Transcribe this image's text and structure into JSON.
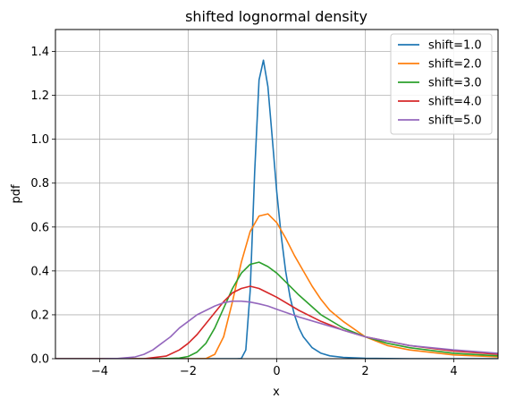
{
  "chart_data": {
    "type": "line",
    "title": "shifted lognormal density",
    "xlabel": "x",
    "ylabel": "pdf",
    "xlim": [
      -5,
      5
    ],
    "ylim": [
      0,
      1.5
    ],
    "x_ticks": [
      -4,
      -2,
      0,
      2,
      4
    ],
    "x_tick_labels": [
      "−4",
      "−2",
      "0",
      "2",
      "4"
    ],
    "y_ticks": [
      0.0,
      0.2,
      0.4,
      0.6,
      0.8,
      1.0,
      1.2,
      1.4
    ],
    "y_tick_labels": [
      "0.0",
      "0.2",
      "0.4",
      "0.6",
      "0.8",
      "1.0",
      "1.2",
      "1.4"
    ],
    "grid": true,
    "legend_position": "top-right",
    "series": [
      {
        "name": "shift=1.0",
        "color": "#1f77b4",
        "x": [
          -1.0,
          -0.9,
          -0.8,
          -0.7,
          -0.6,
          -0.5,
          -0.4,
          -0.3,
          -0.2,
          -0.1,
          0.0,
          0.1,
          0.2,
          0.3,
          0.4,
          0.5,
          0.6,
          0.8,
          1.0,
          1.2,
          1.5,
          2.0,
          2.5,
          3.0,
          4.0,
          5.0
        ],
        "y": [
          0.0,
          0.0,
          0.001,
          0.04,
          0.31,
          0.85,
          1.27,
          1.36,
          1.24,
          1.0,
          0.76,
          0.56,
          0.4,
          0.28,
          0.2,
          0.14,
          0.1,
          0.05,
          0.025,
          0.013,
          0.006,
          0.002,
          0.001,
          0.0,
          0.0,
          0.0
        ]
      },
      {
        "name": "shift=2.0",
        "color": "#ff7f0e",
        "x": [
          -2.0,
          -1.8,
          -1.6,
          -1.4,
          -1.2,
          -1.0,
          -0.8,
          -0.6,
          -0.4,
          -0.2,
          0.0,
          0.2,
          0.4,
          0.6,
          0.8,
          1.0,
          1.2,
          1.5,
          2.0,
          2.5,
          3.0,
          4.0,
          5.0
        ],
        "y": [
          0.0,
          0.0,
          0.001,
          0.02,
          0.1,
          0.26,
          0.44,
          0.58,
          0.65,
          0.66,
          0.62,
          0.55,
          0.47,
          0.4,
          0.33,
          0.27,
          0.22,
          0.17,
          0.1,
          0.06,
          0.04,
          0.017,
          0.008
        ]
      },
      {
        "name": "shift=3.0",
        "color": "#2ca02c",
        "x": [
          -3.0,
          -2.6,
          -2.2,
          -2.0,
          -1.8,
          -1.6,
          -1.4,
          -1.2,
          -1.0,
          -0.8,
          -0.6,
          -0.4,
          -0.2,
          0.0,
          0.2,
          0.5,
          1.0,
          1.5,
          2.0,
          2.5,
          3.0,
          4.0,
          5.0
        ],
        "y": [
          0.0,
          0.0,
          0.003,
          0.01,
          0.03,
          0.07,
          0.14,
          0.23,
          0.32,
          0.39,
          0.43,
          0.44,
          0.42,
          0.39,
          0.35,
          0.29,
          0.2,
          0.14,
          0.1,
          0.07,
          0.05,
          0.025,
          0.013
        ]
      },
      {
        "name": "shift=4.0",
        "color": "#d62728",
        "x": [
          -4.0,
          -3.5,
          -3.0,
          -2.5,
          -2.2,
          -2.0,
          -1.8,
          -1.6,
          -1.4,
          -1.2,
          -1.0,
          -0.8,
          -0.6,
          -0.4,
          -0.2,
          0.0,
          0.5,
          1.0,
          1.5,
          2.0,
          2.5,
          3.0,
          4.0,
          5.0
        ],
        "y": [
          0.0,
          0.0,
          0.0,
          0.012,
          0.04,
          0.07,
          0.11,
          0.16,
          0.21,
          0.26,
          0.3,
          0.32,
          0.33,
          0.32,
          0.3,
          0.28,
          0.22,
          0.17,
          0.13,
          0.1,
          0.08,
          0.06,
          0.035,
          0.02
        ]
      },
      {
        "name": "shift=5.0",
        "color": "#9467bd",
        "x": [
          -5.0,
          -4.0,
          -3.6,
          -3.2,
          -3.0,
          -2.8,
          -2.6,
          -2.4,
          -2.2,
          -2.0,
          -1.8,
          -1.6,
          -1.4,
          -1.2,
          -1.0,
          -0.8,
          -0.6,
          -0.4,
          -0.2,
          0.0,
          0.5,
          1.0,
          1.5,
          2.0,
          2.5,
          3.0,
          4.0,
          5.0
        ],
        "y": [
          0.0,
          0.0,
          0.001,
          0.008,
          0.02,
          0.04,
          0.07,
          0.1,
          0.14,
          0.17,
          0.2,
          0.22,
          0.24,
          0.255,
          0.262,
          0.262,
          0.258,
          0.25,
          0.24,
          0.225,
          0.19,
          0.16,
          0.13,
          0.1,
          0.08,
          0.06,
          0.04,
          0.025
        ]
      }
    ]
  }
}
